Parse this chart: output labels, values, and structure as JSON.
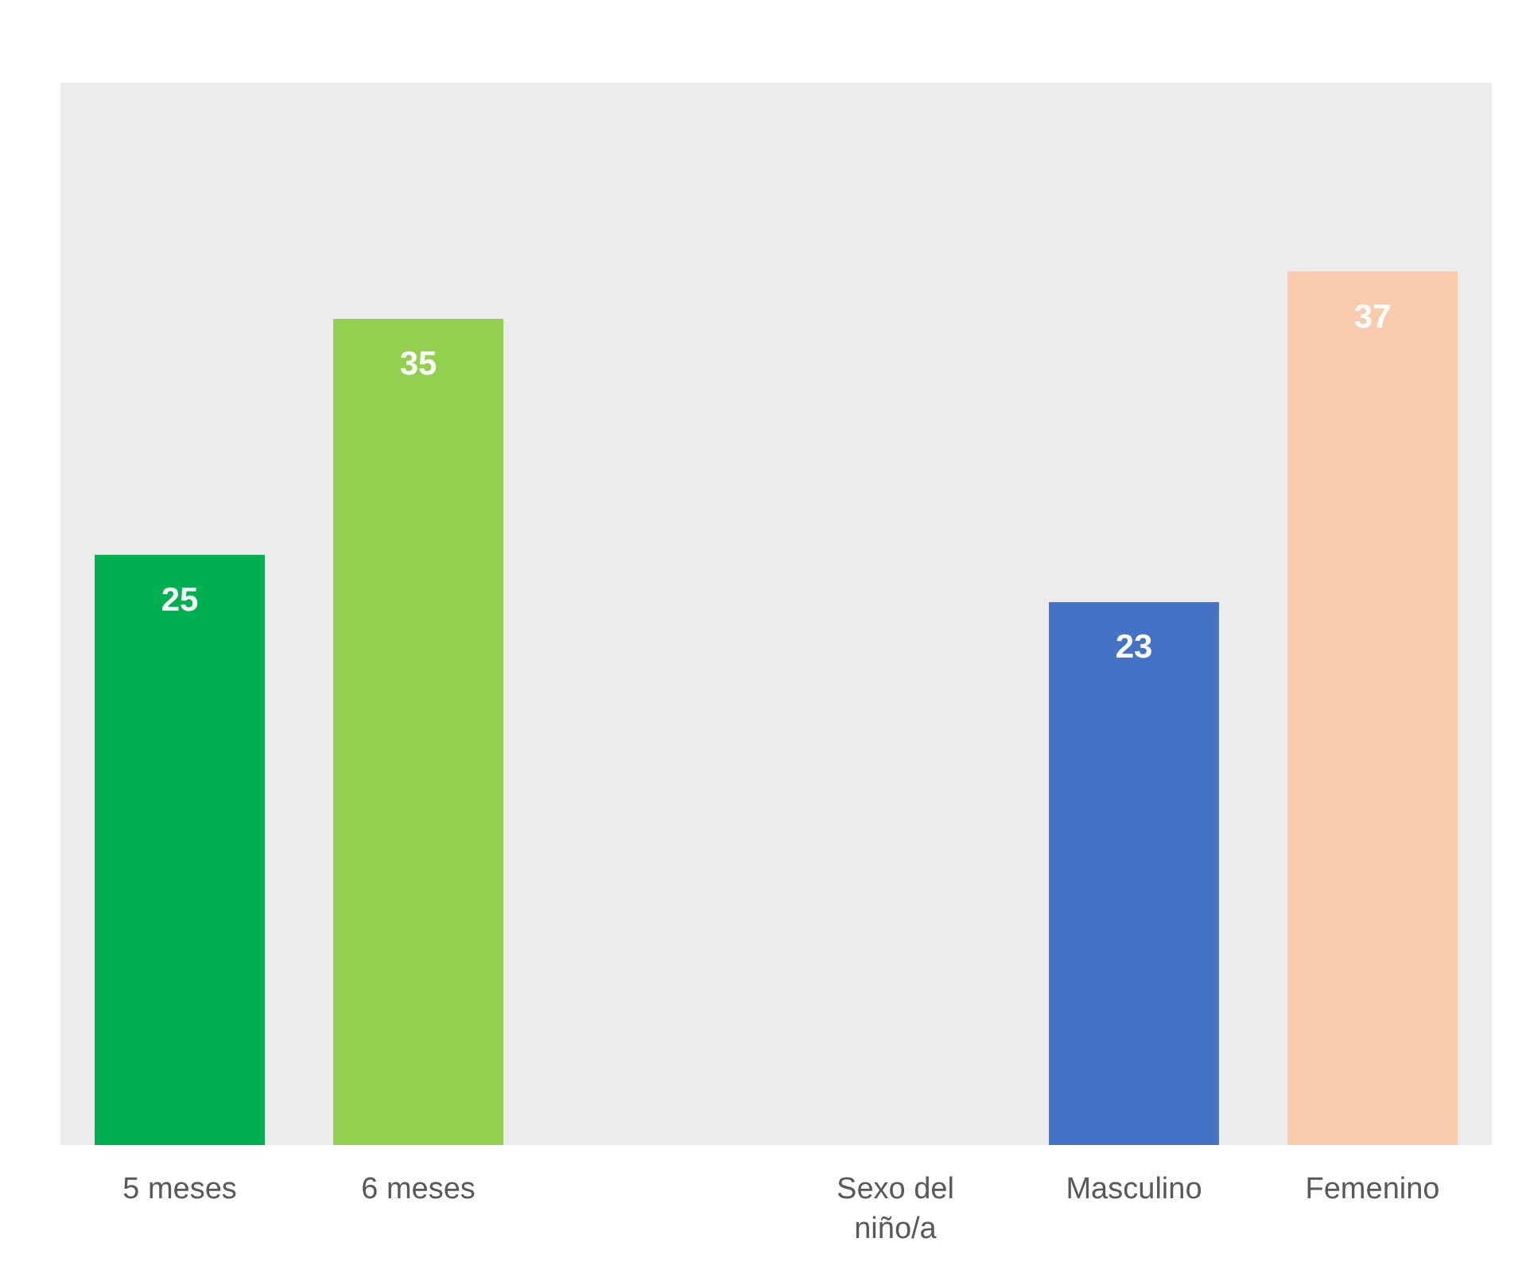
{
  "chart_data": {
    "type": "bar",
    "categories": [
      "5 meses",
      "6 meses",
      null,
      "Sexo del niño/a",
      "Masculino",
      "Femenino"
    ],
    "values": [
      25,
      35,
      null,
      null,
      23,
      37
    ],
    "colors": [
      "#00b050",
      "#92d050",
      null,
      null,
      "#4472c4",
      "#f8cbad"
    ],
    "ylim": [
      0,
      45
    ],
    "data_labels": true
  }
}
